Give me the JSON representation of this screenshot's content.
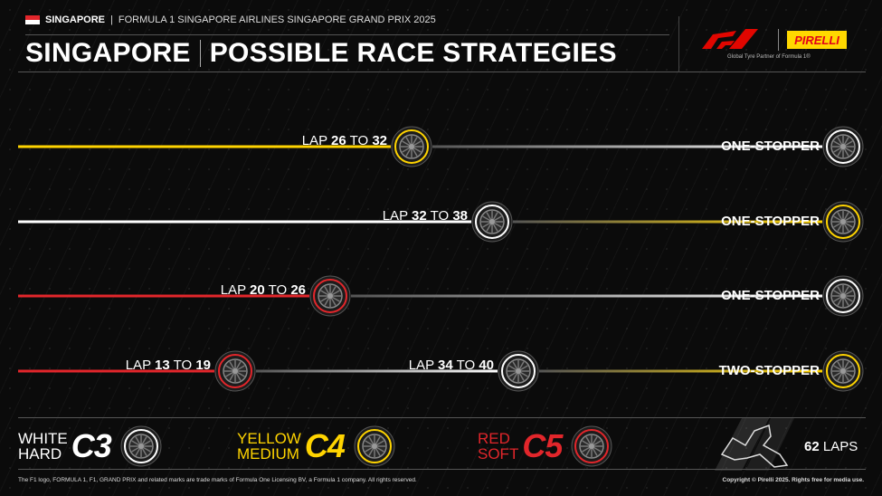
{
  "header": {
    "location": "SINGAPORE",
    "event": "FORMULA 1 SINGAPORE AIRLINES SINGAPORE GRAND PRIX 2025",
    "title_left": "SINGAPORE",
    "title_right": "POSSIBLE RACE STRATEGIES",
    "partner_text": "Global Tyre Partner of Formula 1®",
    "pirelli_logo": "PIRELLI",
    "f1_logo": "F1"
  },
  "colors": {
    "hard": "#ffffff",
    "medium": "#ffd400",
    "soft": "#e2262b",
    "flag_red": "#e2262b"
  },
  "strategies": [
    {
      "name": "ONE-STOPPER",
      "stints": [
        "medium",
        "hard"
      ],
      "pits": [
        {
          "lap_word": "LAP",
          "from": "26",
          "to_word": "TO",
          "to": "32"
        }
      ]
    },
    {
      "name": "ONE-STOPPER",
      "stints": [
        "hard",
        "medium"
      ],
      "pits": [
        {
          "lap_word": "LAP",
          "from": "32",
          "to_word": "TO",
          "to": "38"
        }
      ]
    },
    {
      "name": "ONE-STOPPER",
      "stints": [
        "soft",
        "hard"
      ],
      "pits": [
        {
          "lap_word": "LAP",
          "from": "20",
          "to_word": "TO",
          "to": "26"
        }
      ]
    },
    {
      "name": "TWO-STOPPER",
      "stints": [
        "soft",
        "hard",
        "medium"
      ],
      "pits": [
        {
          "lap_word": "LAP",
          "from": "13",
          "to_word": "TO",
          "to": "19"
        },
        {
          "lap_word": "LAP",
          "from": "34",
          "to_word": "TO",
          "to": "40"
        }
      ]
    }
  ],
  "legend": [
    {
      "color_name": "WHITE",
      "type": "HARD",
      "compound": "C3",
      "key": "hard"
    },
    {
      "color_name": "YELLOW",
      "type": "MEDIUM",
      "compound": "C4",
      "key": "medium"
    },
    {
      "color_name": "RED",
      "type": "SOFT",
      "compound": "C5",
      "key": "soft"
    }
  ],
  "race": {
    "laps": "62",
    "laps_label": "LAPS"
  },
  "footer": {
    "trademark": "The F1 logo, FORMULA 1, F1, GRAND PRIX and related marks are trade marks of Formula One Licensing BV, a Formula 1 company. All rights reserved.",
    "copyright": "Copyright © Pirelli 2025. Rights free for media use."
  }
}
